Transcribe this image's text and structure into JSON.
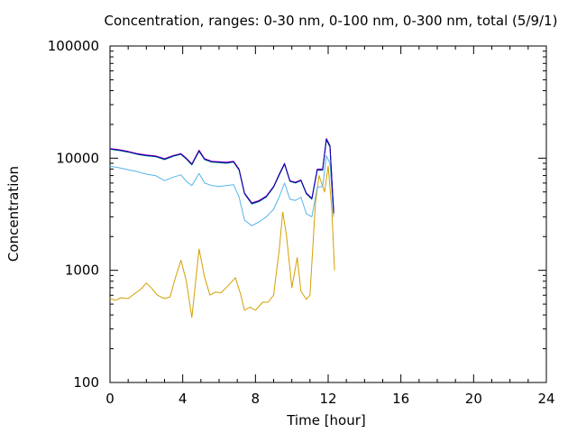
{
  "chart_data": {
    "type": "line",
    "title": "Concentration, ranges: 0-30 nm, 0-100 nm, 0-300 nm, total (5/9/1)",
    "xlabel": "Time [hour]",
    "ylabel": "Concentration",
    "xlim": [
      0,
      24
    ],
    "ylim": [
      100,
      100000
    ],
    "yscale": "log",
    "grid": false,
    "x_ticks": [
      0,
      4,
      8,
      12,
      16,
      20,
      24
    ],
    "x_tick_labels": [
      "0",
      "4",
      "8",
      "12",
      "16",
      "20",
      "24"
    ],
    "y_ticks": [
      100,
      1000,
      10000,
      100000
    ],
    "y_tick_labels": [
      "100",
      "1000",
      "10000",
      "100000"
    ],
    "series": [
      {
        "color": "#d4a000",
        "points": [
          [
            0,
            560
          ],
          [
            0.3,
            540
          ],
          [
            0.6,
            570
          ],
          [
            1.0,
            560
          ],
          [
            1.3,
            610
          ],
          [
            1.7,
            680
          ],
          [
            2.0,
            770
          ],
          [
            2.3,
            690
          ],
          [
            2.6,
            600
          ],
          [
            3.0,
            560
          ],
          [
            3.3,
            580
          ],
          [
            3.6,
            860
          ],
          [
            3.9,
            1230
          ],
          [
            4.2,
            800
          ],
          [
            4.5,
            380
          ],
          [
            4.9,
            1550
          ],
          [
            5.2,
            870
          ],
          [
            5.5,
            600
          ],
          [
            5.8,
            640
          ],
          [
            6.1,
            630
          ],
          [
            6.5,
            730
          ],
          [
            6.9,
            860
          ],
          [
            7.2,
            600
          ],
          [
            7.4,
            440
          ],
          [
            7.7,
            470
          ],
          [
            8.0,
            440
          ],
          [
            8.4,
            520
          ],
          [
            8.7,
            520
          ],
          [
            9.0,
            600
          ],
          [
            9.3,
            1500
          ],
          [
            9.5,
            3300
          ],
          [
            9.7,
            2100
          ],
          [
            10.0,
            700
          ],
          [
            10.3,
            1300
          ],
          [
            10.5,
            650
          ],
          [
            10.8,
            550
          ],
          [
            11.0,
            600
          ],
          [
            11.3,
            4000
          ],
          [
            11.5,
            7000
          ],
          [
            11.8,
            5000
          ],
          [
            12.0,
            8500
          ],
          [
            12.2,
            3500
          ],
          [
            12.35,
            1000
          ]
        ]
      },
      {
        "color": "#56b4e9",
        "points": [
          [
            0,
            8500
          ],
          [
            0.5,
            8200
          ],
          [
            1.0,
            7900
          ],
          [
            1.5,
            7600
          ],
          [
            2.0,
            7200
          ],
          [
            2.5,
            7000
          ],
          [
            3.0,
            6300
          ],
          [
            3.5,
            6800
          ],
          [
            3.9,
            7100
          ],
          [
            4.2,
            6200
          ],
          [
            4.5,
            5700
          ],
          [
            4.9,
            7300
          ],
          [
            5.2,
            6000
          ],
          [
            5.6,
            5700
          ],
          [
            6.0,
            5600
          ],
          [
            6.4,
            5700
          ],
          [
            6.8,
            5800
          ],
          [
            7.1,
            4500
          ],
          [
            7.4,
            2800
          ],
          [
            7.8,
            2500
          ],
          [
            8.2,
            2700
          ],
          [
            8.6,
            3000
          ],
          [
            9.0,
            3500
          ],
          [
            9.3,
            4500
          ],
          [
            9.6,
            6000
          ],
          [
            9.9,
            4300
          ],
          [
            10.2,
            4200
          ],
          [
            10.5,
            4500
          ],
          [
            10.8,
            3200
          ],
          [
            11.1,
            3000
          ],
          [
            11.4,
            5500
          ],
          [
            11.7,
            5600
          ],
          [
            11.9,
            10500
          ],
          [
            12.1,
            9000
          ],
          [
            12.3,
            3000
          ]
        ]
      },
      {
        "color": "#009e73",
        "points": [
          [
            0,
            12000
          ],
          [
            0.5,
            11700
          ],
          [
            1.0,
            11300
          ],
          [
            1.5,
            10800
          ],
          [
            2.0,
            10500
          ],
          [
            2.5,
            10300
          ],
          [
            3.0,
            9700
          ],
          [
            3.5,
            10400
          ],
          [
            3.9,
            10800
          ],
          [
            4.2,
            9800
          ],
          [
            4.5,
            8700
          ],
          [
            4.9,
            11500
          ],
          [
            5.2,
            9700
          ],
          [
            5.6,
            9200
          ],
          [
            6.0,
            9100
          ],
          [
            6.4,
            9000
          ],
          [
            6.8,
            9200
          ],
          [
            7.1,
            7800
          ],
          [
            7.4,
            4800
          ],
          [
            7.8,
            3900
          ],
          [
            8.2,
            4100
          ],
          [
            8.6,
            4500
          ],
          [
            9.0,
            5500
          ],
          [
            9.3,
            7000
          ],
          [
            9.6,
            8800
          ],
          [
            9.9,
            6200
          ],
          [
            10.2,
            6000
          ],
          [
            10.5,
            6300
          ],
          [
            10.8,
            4800
          ],
          [
            11.1,
            4300
          ],
          [
            11.4,
            7800
          ],
          [
            11.7,
            7800
          ],
          [
            11.9,
            14500
          ],
          [
            12.1,
            12500
          ],
          [
            12.3,
            3200
          ]
        ]
      },
      {
        "color": "#cc00cc",
        "points": [
          [
            0,
            12200
          ],
          [
            0.5,
            11900
          ],
          [
            1.0,
            11500
          ],
          [
            1.5,
            11000
          ],
          [
            2.0,
            10700
          ],
          [
            2.5,
            10500
          ],
          [
            3.0,
            9900
          ],
          [
            3.5,
            10600
          ],
          [
            3.9,
            11000
          ],
          [
            4.2,
            10000
          ],
          [
            4.5,
            8900
          ],
          [
            4.9,
            11800
          ],
          [
            5.2,
            9900
          ],
          [
            5.6,
            9400
          ],
          [
            6.0,
            9300
          ],
          [
            6.4,
            9200
          ],
          [
            6.8,
            9400
          ],
          [
            7.1,
            8000
          ],
          [
            7.4,
            4900
          ],
          [
            7.8,
            4000
          ],
          [
            8.2,
            4200
          ],
          [
            8.6,
            4600
          ],
          [
            9.0,
            5600
          ],
          [
            9.3,
            7200
          ],
          [
            9.6,
            9000
          ],
          [
            9.9,
            6300
          ],
          [
            10.2,
            6100
          ],
          [
            10.5,
            6400
          ],
          [
            10.8,
            4900
          ],
          [
            11.1,
            4400
          ],
          [
            11.4,
            8000
          ],
          [
            11.7,
            8000
          ],
          [
            11.9,
            15000
          ],
          [
            12.1,
            13000
          ],
          [
            12.3,
            3300
          ]
        ]
      },
      {
        "color": "#0000aa",
        "points": [
          [
            0,
            12100
          ],
          [
            0.5,
            11800
          ],
          [
            1.0,
            11400
          ],
          [
            1.5,
            10900
          ],
          [
            2.0,
            10600
          ],
          [
            2.5,
            10400
          ],
          [
            3.0,
            9800
          ],
          [
            3.5,
            10500
          ],
          [
            3.9,
            10900
          ],
          [
            4.2,
            9900
          ],
          [
            4.5,
            8800
          ],
          [
            4.9,
            11600
          ],
          [
            5.2,
            9800
          ],
          [
            5.6,
            9300
          ],
          [
            6.0,
            9200
          ],
          [
            6.4,
            9100
          ],
          [
            6.8,
            9300
          ],
          [
            7.1,
            7900
          ],
          [
            7.4,
            4850
          ],
          [
            7.8,
            3950
          ],
          [
            8.2,
            4150
          ],
          [
            8.6,
            4550
          ],
          [
            9.0,
            5550
          ],
          [
            9.3,
            7100
          ],
          [
            9.6,
            8900
          ],
          [
            9.9,
            6250
          ],
          [
            10.2,
            6050
          ],
          [
            10.5,
            6350
          ],
          [
            10.8,
            4850
          ],
          [
            11.1,
            4350
          ],
          [
            11.4,
            7900
          ],
          [
            11.7,
            7900
          ],
          [
            11.9,
            14800
          ],
          [
            12.1,
            12800
          ],
          [
            12.3,
            3250
          ]
        ]
      }
    ]
  }
}
